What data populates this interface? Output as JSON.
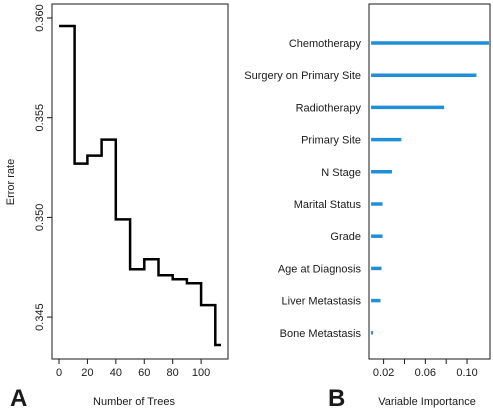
{
  "chart_data": [
    {
      "type": "line",
      "panel_label": "A",
      "xlabel": "Number of Trees",
      "ylabel": "Error rate",
      "xlim": [
        0,
        114
      ],
      "ylim": [
        0.3435,
        0.36
      ],
      "x_ticks": [
        0,
        20,
        40,
        60,
        80,
        100
      ],
      "y_ticks": [
        0.345,
        0.35,
        0.355,
        0.36
      ],
      "y_tick_labels": [
        "0.345",
        "0.350",
        "0.355",
        "0.360"
      ],
      "grid": false,
      "line_style": "step",
      "line_color": "#000000",
      "series": [
        {
          "x": [
            0,
            1,
            11,
            20,
            30,
            40,
            50,
            60,
            70,
            80,
            90,
            100,
            110,
            114
          ],
          "y": [
            0.3596,
            0.3596,
            0.3527,
            0.3531,
            0.3539,
            0.3499,
            0.3474,
            0.3479,
            0.3471,
            0.3469,
            0.3467,
            0.3456,
            0.3436,
            0.3436
          ]
        }
      ]
    },
    {
      "type": "bar",
      "orientation": "horizontal",
      "panel_label": "B",
      "xlabel": "Variable Importance",
      "ylabel": "",
      "xlim": [
        0.006,
        0.122
      ],
      "x_ticks": [
        0.02,
        0.06,
        0.1
      ],
      "x_minor_ticks": [
        0.04,
        0.08
      ],
      "x_tick_labels": [
        "0.02",
        "0.06",
        "0.10"
      ],
      "grid": false,
      "bar_color": "#1f8fd6",
      "categories": [
        "Chemotherapy",
        "Surgery on Primary Site",
        "Radiotherapy",
        "Primary Site",
        "N Stage",
        "Marital Status",
        "Grade",
        "Age at Diagnosis",
        "Liver Metastasis",
        "Bone Metastasis"
      ],
      "values": [
        0.121,
        0.109,
        0.078,
        0.037,
        0.028,
        0.019,
        0.019,
        0.018,
        0.017,
        0.009
      ]
    }
  ]
}
